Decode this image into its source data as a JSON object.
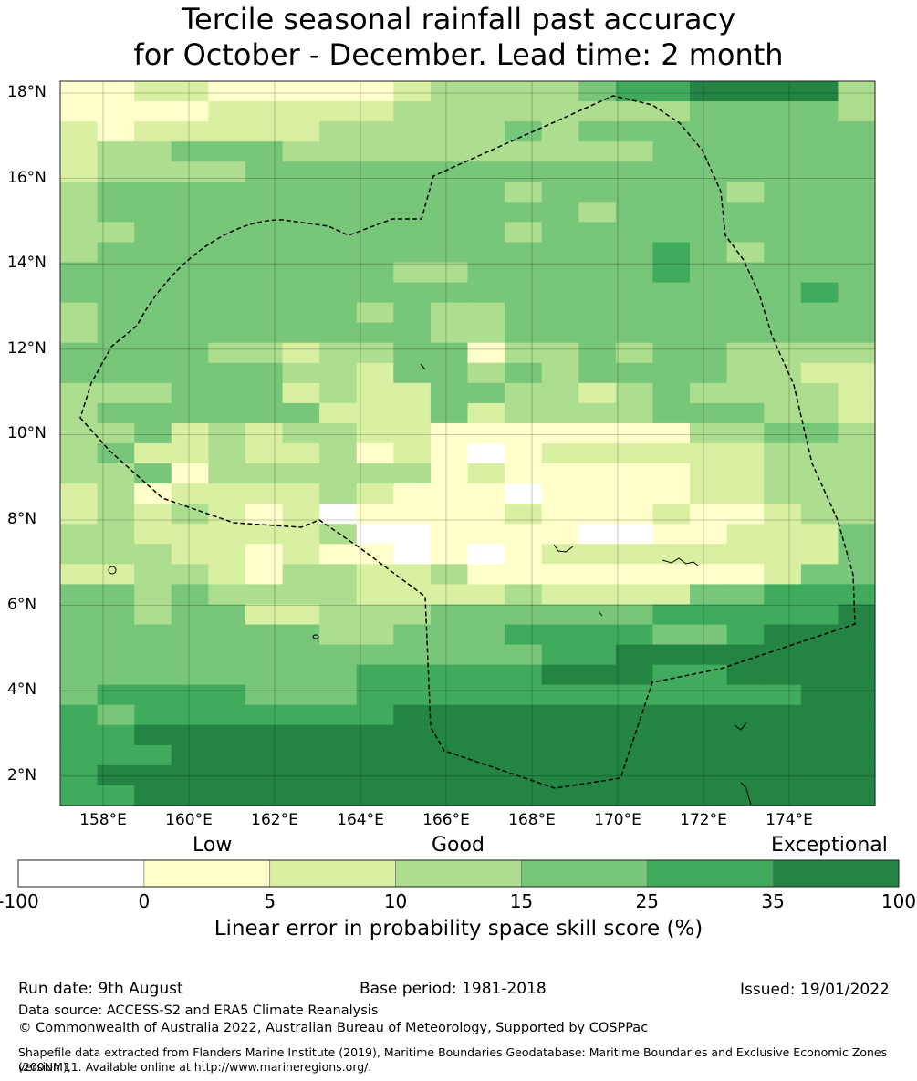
{
  "title": {
    "line1": "Tercile seasonal rainfall past accuracy",
    "line2": "for October - December. Lead time: 2 month"
  },
  "map": {
    "lat_labels": [
      "18°N",
      "16°N",
      "14°N",
      "12°N",
      "10°N",
      "8°N",
      "6°N",
      "4°N",
      "2°N"
    ],
    "lon_labels": [
      "158°E",
      "160°E",
      "162°E",
      "164°E",
      "166°E",
      "168°E",
      "170°E",
      "172°E",
      "174°E"
    ],
    "boundary_style": "dashed",
    "grid": true
  },
  "colorbar": {
    "category_labels": [
      "Low",
      "Good",
      "Exceptional"
    ],
    "ticks": [
      "-100",
      "0",
      "5",
      "10",
      "15",
      "25",
      "35",
      "100"
    ],
    "colors": [
      "#ffffff",
      "#ffffcc",
      "#d9f0a3",
      "#addd8e",
      "#78c679",
      "#41ab5d",
      "#238443"
    ],
    "title": "Linear error in probability space skill score (%)"
  },
  "footer": {
    "run_date": "Run date: 9th August",
    "base_period": "Base period: 1981-2018",
    "issued": "Issued: 19/01/2022",
    "data_source": "Data source: ACCESS-S2 and ERA5 Climate Reanalysis",
    "copyright": "© Commonwealth of Australia 2022, Australian Bureau of Meteorology, Supported by COSPPac",
    "shapefile_line1": "Shapefile data extracted from Flanders Marine Institute (2019), Maritime Boundaries Geodatabase: Maritime Boundaries and Exclusive Economic Zones (200NM),",
    "shapefile_line2": "version 11. Available online at http://www.marineregions.org/."
  },
  "grid_rows": [
    "1122111112333345566663",
    "1111222223333333344443",
    "2122222333334344444444",
    "2334443333333333444444",
    "2333344444444444444444",
    "3444444444443444443444",
    "3444444444444434444444",
    "3344444444443444444444",
    "3444444444444444543444",
    "4444444443344444544444",
    "4444444444444444444454",
    "3444444434334444444444",
    "3444444444334444444444",
    "4444332334413343443333",
    "4444443324434344443322",
    "3334442322443323433332",
    "3444444222423333444332",
    "3342323322111111133443",
    "3422322312101222222333",
    "3341333333121111122333",
    "2312222321110111122333",
    "2323212011112111211233",
    "3322222300111100112224",
    "3332212110101222222224",
    "2233213322311111111244",
    "4434333322223222244555",
    "4434422333444444555556",
    "4444444334445555445666",
    "4444444444444556666666",
    "4444444455555666556666",
    "4555544455555555555566",
    "5455555556666666666666",
    "5566666666666666666666",
    "5556666666666666666666",
    "5666666666666666666666",
    "5566666666666666666666"
  ]
}
